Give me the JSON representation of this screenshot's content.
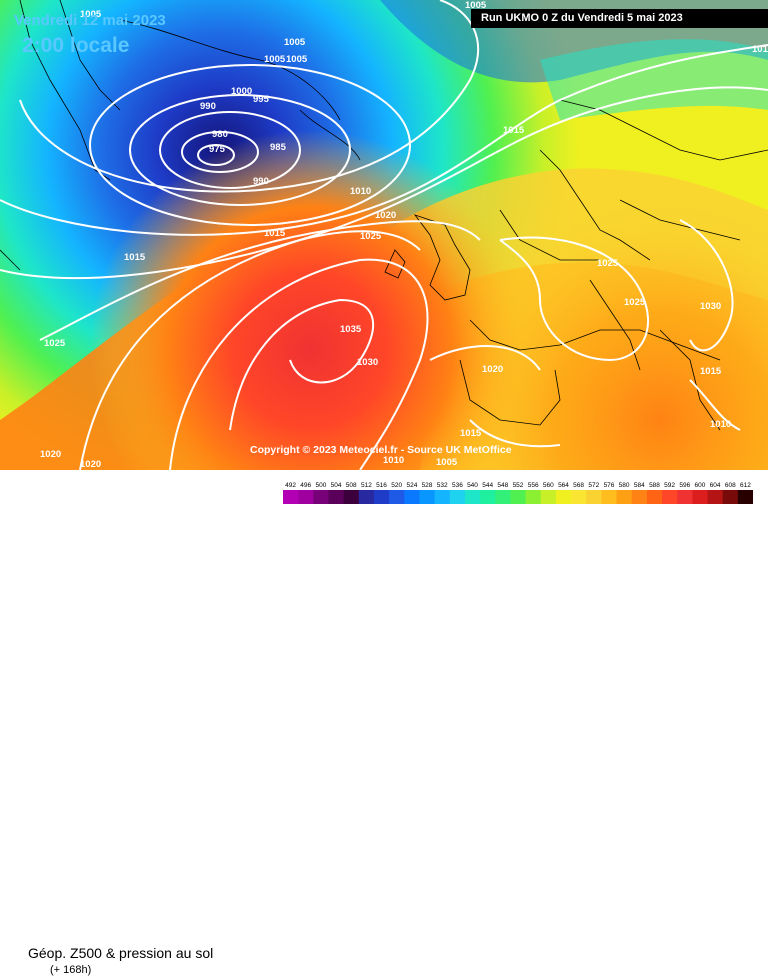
{
  "valid_date": "Vendredi 12 mai 2023",
  "valid_time": "2:00 locale",
  "run_info": "Run UKMO 0 Z du Vendredi 5 mai 2023",
  "copyright": "Copyright © 2023 Meteociel.fr - Source UK MetOffice",
  "title": "Géop. Z500 & pression au sol",
  "forecast_hour": "(+ 168h)",
  "legend": {
    "values": [
      "492",
      "496",
      "500",
      "504",
      "508",
      "512",
      "516",
      "520",
      "524",
      "528",
      "532",
      "536",
      "540",
      "544",
      "548",
      "552",
      "556",
      "560",
      "564",
      "568",
      "572",
      "576",
      "580",
      "584",
      "588",
      "592",
      "596",
      "600",
      "604",
      "608",
      "612"
    ],
    "colors": [
      "#b400b4",
      "#a000a0",
      "#780078",
      "#5a005a",
      "#3c003c",
      "#2828a0",
      "#1e3cc8",
      "#1e5ae6",
      "#0a78ff",
      "#0a96ff",
      "#14b4ff",
      "#1ed2f0",
      "#1ee6c8",
      "#1ef0a0",
      "#32f078",
      "#50f050",
      "#8cf032",
      "#c8f028",
      "#f0f020",
      "#fae632",
      "#fad232",
      "#ffbe1e",
      "#ffa014",
      "#ff8214",
      "#ff6414",
      "#ff4628",
      "#f03232",
      "#dc1e1e",
      "#b41414",
      "#780a0a",
      "#280000"
    ]
  },
  "isobars": [
    {
      "value": "1005"
    },
    {
      "value": "1005"
    },
    {
      "value": "1005"
    },
    {
      "value": "1005"
    },
    {
      "value": "1005"
    },
    {
      "value": "1000"
    },
    {
      "value": "995"
    },
    {
      "value": "990"
    },
    {
      "value": "980"
    },
    {
      "value": "975"
    },
    {
      "value": "985"
    },
    {
      "value": "990"
    },
    {
      "value": "1015"
    },
    {
      "value": "1010"
    },
    {
      "value": "1020"
    },
    {
      "value": "1015"
    },
    {
      "value": "1025"
    },
    {
      "value": "1015"
    },
    {
      "value": "1025"
    },
    {
      "value": "1035"
    },
    {
      "value": "1030"
    },
    {
      "value": "1025"
    },
    {
      "value": "1025"
    },
    {
      "value": "1030"
    },
    {
      "value": "1020"
    },
    {
      "value": "1015"
    },
    {
      "value": "1010"
    },
    {
      "value": "1015"
    },
    {
      "value": "1010"
    },
    {
      "value": "1005"
    },
    {
      "value": "1020"
    },
    {
      "value": "1020"
    },
    {
      "value": "1010"
    }
  ]
}
